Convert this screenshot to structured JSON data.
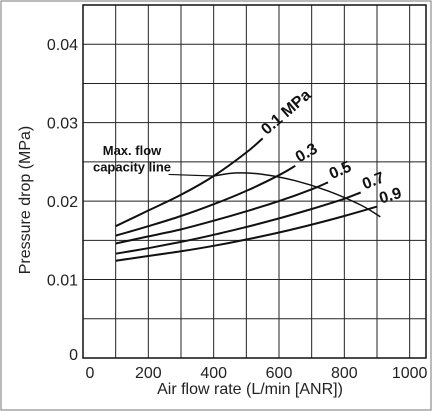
{
  "chart_data": {
    "type": "line",
    "title": "",
    "xlabel": "Air flow rate (L/min [ANR])",
    "ylabel": "Pressure drop (MPa)",
    "xlim": [
      0,
      1050
    ],
    "ylim": [
      0,
      0.045
    ],
    "grid": true,
    "x_ticks": [
      {
        "value": 0,
        "label": "0"
      },
      {
        "value": 200,
        "label": "200"
      },
      {
        "value": 400,
        "label": "400"
      },
      {
        "value": 600,
        "label": "600"
      },
      {
        "value": 800,
        "label": "800"
      },
      {
        "value": 1000,
        "label": "1000"
      }
    ],
    "y_ticks": [
      {
        "value": 0,
        "label": "0"
      },
      {
        "value": 0.01,
        "label": "0.01"
      },
      {
        "value": 0.02,
        "label": "0.02"
      },
      {
        "value": 0.03,
        "label": "0.03"
      },
      {
        "value": 0.04,
        "label": "0.04"
      }
    ],
    "series": [
      {
        "name": "0.1 MPa",
        "x": [
          100,
          200,
          300,
          400,
          500,
          550
        ],
        "y": [
          0.0168,
          0.0188,
          0.0208,
          0.0232,
          0.0262,
          0.028
        ]
      },
      {
        "name": "0.3",
        "x": [
          100,
          200,
          300,
          400,
          500,
          600,
          650
        ],
        "y": [
          0.0156,
          0.0168,
          0.0181,
          0.0196,
          0.0213,
          0.0233,
          0.0245
        ]
      },
      {
        "name": "0.5",
        "x": [
          100,
          200,
          300,
          400,
          500,
          600,
          700,
          750
        ],
        "y": [
          0.0146,
          0.0155,
          0.0164,
          0.0175,
          0.0187,
          0.02,
          0.0215,
          0.0224
        ]
      },
      {
        "name": "0.7",
        "x": [
          100,
          200,
          300,
          400,
          500,
          600,
          700,
          800,
          850
        ],
        "y": [
          0.0133,
          0.014,
          0.0148,
          0.0157,
          0.0167,
          0.0178,
          0.019,
          0.0203,
          0.0211
        ]
      },
      {
        "name": "0.9",
        "x": [
          100,
          200,
          300,
          400,
          500,
          600,
          700,
          800,
          900
        ],
        "y": [
          0.0124,
          0.013,
          0.0136,
          0.0143,
          0.0151,
          0.016,
          0.017,
          0.0181,
          0.0193
        ]
      }
    ],
    "max_flow_line": {
      "label_line1": "Max. flow",
      "label_line2": "capacity line",
      "x": [
        400,
        470,
        550,
        650,
        750,
        850,
        910
      ],
      "y": [
        0.0232,
        0.0236,
        0.0234,
        0.0226,
        0.0213,
        0.0195,
        0.018
      ]
    }
  }
}
